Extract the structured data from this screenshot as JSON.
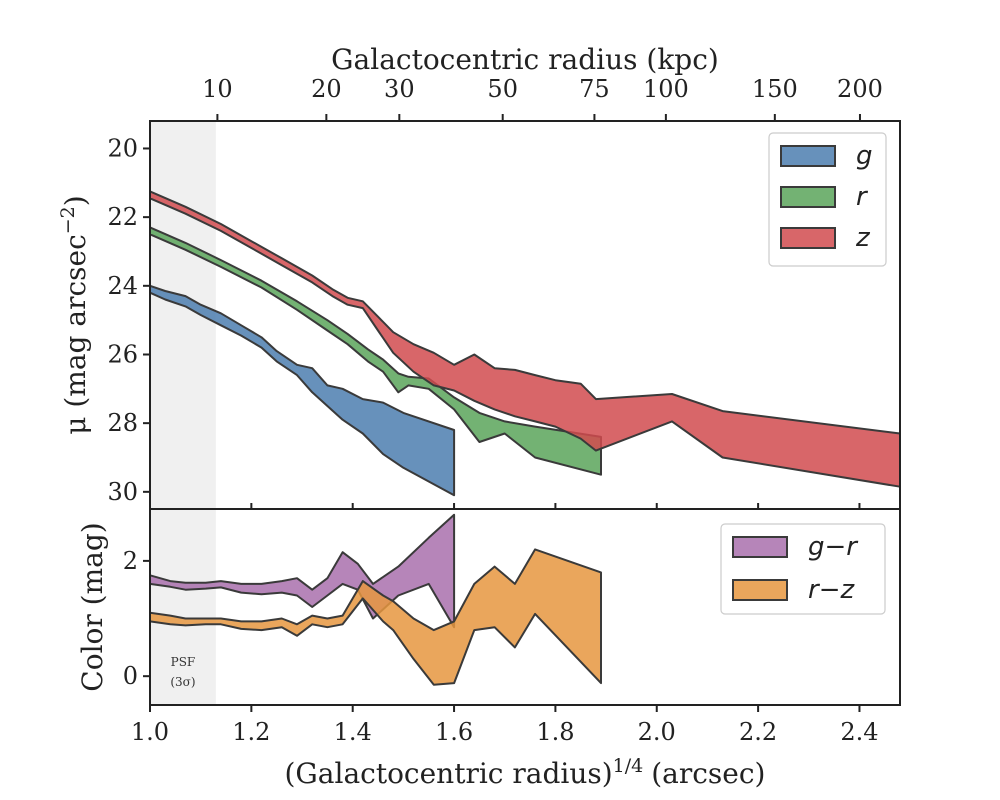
{
  "chart_data": [
    {
      "type": "area",
      "panel": "surface-brightness",
      "title": "",
      "xlabel": "(Galactocentric radius)",
      "xlabel_sup": "1/4",
      "xlabel_unit": "(arcsec)",
      "ylabel": "μ (mag arcsec",
      "ylabel_sup": "−2",
      "ylabel_close": ")",
      "top_xlabel": "Galactocentric radius (kpc)",
      "top_ticks": [
        {
          "label": "10",
          "x": 1.133
        },
        {
          "label": "20",
          "x": 1.348
        },
        {
          "label": "30",
          "x": 1.492
        },
        {
          "label": "50",
          "x": 1.696
        },
        {
          "label": "75",
          "x": 1.877
        },
        {
          "label": "100",
          "x": 2.018
        },
        {
          "label": "150",
          "x": 2.233
        },
        {
          "label": "200",
          "x": 2.401
        }
      ],
      "xlim": [
        1.0,
        2.48
      ],
      "ylim": [
        30.5,
        19.2
      ],
      "yinvert": true,
      "yticks": [
        "20",
        "22",
        "24",
        "26",
        "28",
        "30"
      ],
      "shaded_region": {
        "x": [
          1.0,
          1.13
        ],
        "label": "PSF",
        "sublabel": "(3σ)"
      },
      "legend_position": "upper right",
      "series": [
        {
          "name": "g",
          "color": "#4c7eaf",
          "x": [
            1.0,
            1.03,
            1.07,
            1.1,
            1.14,
            1.18,
            1.22,
            1.25,
            1.29,
            1.32,
            1.35,
            1.38,
            1.42,
            1.46,
            1.5,
            1.6
          ],
          "lower": [
            24.0,
            24.15,
            24.3,
            24.55,
            24.8,
            25.15,
            25.5,
            25.9,
            26.3,
            26.4,
            26.9,
            27.0,
            27.3,
            27.4,
            27.7,
            28.2
          ],
          "upper": [
            24.2,
            24.4,
            24.6,
            24.85,
            25.15,
            25.45,
            25.8,
            26.2,
            26.6,
            27.1,
            27.5,
            27.9,
            28.3,
            28.9,
            29.3,
            30.1
          ]
        },
        {
          "name": "r",
          "color": "#5aa55a",
          "x": [
            1.0,
            1.07,
            1.14,
            1.22,
            1.29,
            1.35,
            1.39,
            1.43,
            1.46,
            1.49,
            1.51,
            1.55,
            1.6,
            1.65,
            1.7,
            1.76,
            1.89
          ],
          "lower": [
            22.3,
            22.75,
            23.25,
            23.85,
            24.45,
            25.0,
            25.4,
            25.85,
            26.15,
            26.55,
            26.65,
            26.7,
            27.25,
            27.7,
            27.95,
            28.1,
            28.4
          ],
          "upper": [
            22.5,
            22.95,
            23.45,
            24.05,
            24.7,
            25.3,
            25.7,
            26.2,
            26.5,
            27.1,
            26.9,
            27.0,
            27.6,
            28.55,
            28.3,
            29.0,
            29.5
          ]
        },
        {
          "name": "z",
          "color": "#d14b4f",
          "x": [
            1.0,
            1.07,
            1.14,
            1.2,
            1.26,
            1.32,
            1.36,
            1.39,
            1.42,
            1.45,
            1.48,
            1.52,
            1.56,
            1.6,
            1.64,
            1.68,
            1.72,
            1.76,
            1.8,
            1.85,
            1.88,
            2.03,
            2.13,
            2.48
          ],
          "lower": [
            21.25,
            21.7,
            22.2,
            22.7,
            23.2,
            23.7,
            24.1,
            24.35,
            24.45,
            24.9,
            25.35,
            25.7,
            25.95,
            26.3,
            26.0,
            26.4,
            26.45,
            26.6,
            26.75,
            26.85,
            27.3,
            27.15,
            27.65,
            28.3
          ],
          "upper": [
            21.45,
            21.9,
            22.4,
            22.9,
            23.4,
            23.9,
            24.3,
            24.55,
            24.65,
            25.3,
            25.95,
            26.5,
            26.9,
            27.05,
            27.35,
            27.6,
            27.8,
            27.95,
            28.1,
            28.45,
            28.8,
            27.95,
            29.0,
            29.85
          ]
        }
      ]
    },
    {
      "type": "area",
      "panel": "color",
      "xlabel": "(Galactocentric radius)",
      "xlabel_sup": "1/4",
      "xlabel_unit": "(arcsec)",
      "ylabel": "Color (mag)",
      "xlim": [
        1.0,
        2.48
      ],
      "ylim": [
        -0.5,
        2.9
      ],
      "yticks": [
        "0",
        "2"
      ],
      "xticks": [
        "1.0",
        "1.2",
        "1.4",
        "1.6",
        "1.8",
        "2.0",
        "2.2",
        "2.4"
      ],
      "legend_position": "upper right",
      "series": [
        {
          "name": "g−r",
          "color": "#a970ad",
          "x": [
            1.0,
            1.04,
            1.07,
            1.11,
            1.14,
            1.18,
            1.22,
            1.26,
            1.29,
            1.32,
            1.35,
            1.38,
            1.41,
            1.44,
            1.49,
            1.55,
            1.6
          ],
          "lower": [
            1.6,
            1.55,
            1.5,
            1.52,
            1.54,
            1.45,
            1.42,
            1.45,
            1.4,
            1.2,
            1.4,
            1.6,
            1.5,
            1.0,
            1.4,
            1.6,
            0.85
          ],
          "upper": [
            1.75,
            1.65,
            1.62,
            1.62,
            1.65,
            1.6,
            1.6,
            1.65,
            1.7,
            1.5,
            1.7,
            2.15,
            1.95,
            1.6,
            1.9,
            2.4,
            2.8
          ]
        },
        {
          "name": "r−z",
          "color": "#e6963f",
          "x": [
            1.0,
            1.04,
            1.07,
            1.11,
            1.14,
            1.18,
            1.22,
            1.26,
            1.29,
            1.32,
            1.35,
            1.38,
            1.42,
            1.46,
            1.48,
            1.52,
            1.56,
            1.6,
            1.64,
            1.68,
            1.72,
            1.76,
            1.89
          ],
          "lower": [
            0.95,
            0.9,
            0.88,
            0.9,
            0.9,
            0.82,
            0.8,
            0.85,
            0.7,
            0.9,
            0.85,
            0.9,
            1.35,
            0.95,
            0.8,
            0.3,
            -0.15,
            -0.12,
            0.8,
            0.85,
            0.5,
            1.08,
            -0.12
          ],
          "upper": [
            1.1,
            1.05,
            1.0,
            1.0,
            1.0,
            0.95,
            0.95,
            1.0,
            0.9,
            1.05,
            1.0,
            1.05,
            1.65,
            1.4,
            1.3,
            1.0,
            0.8,
            0.95,
            1.6,
            1.9,
            1.6,
            2.2,
            1.8
          ]
        }
      ]
    }
  ]
}
